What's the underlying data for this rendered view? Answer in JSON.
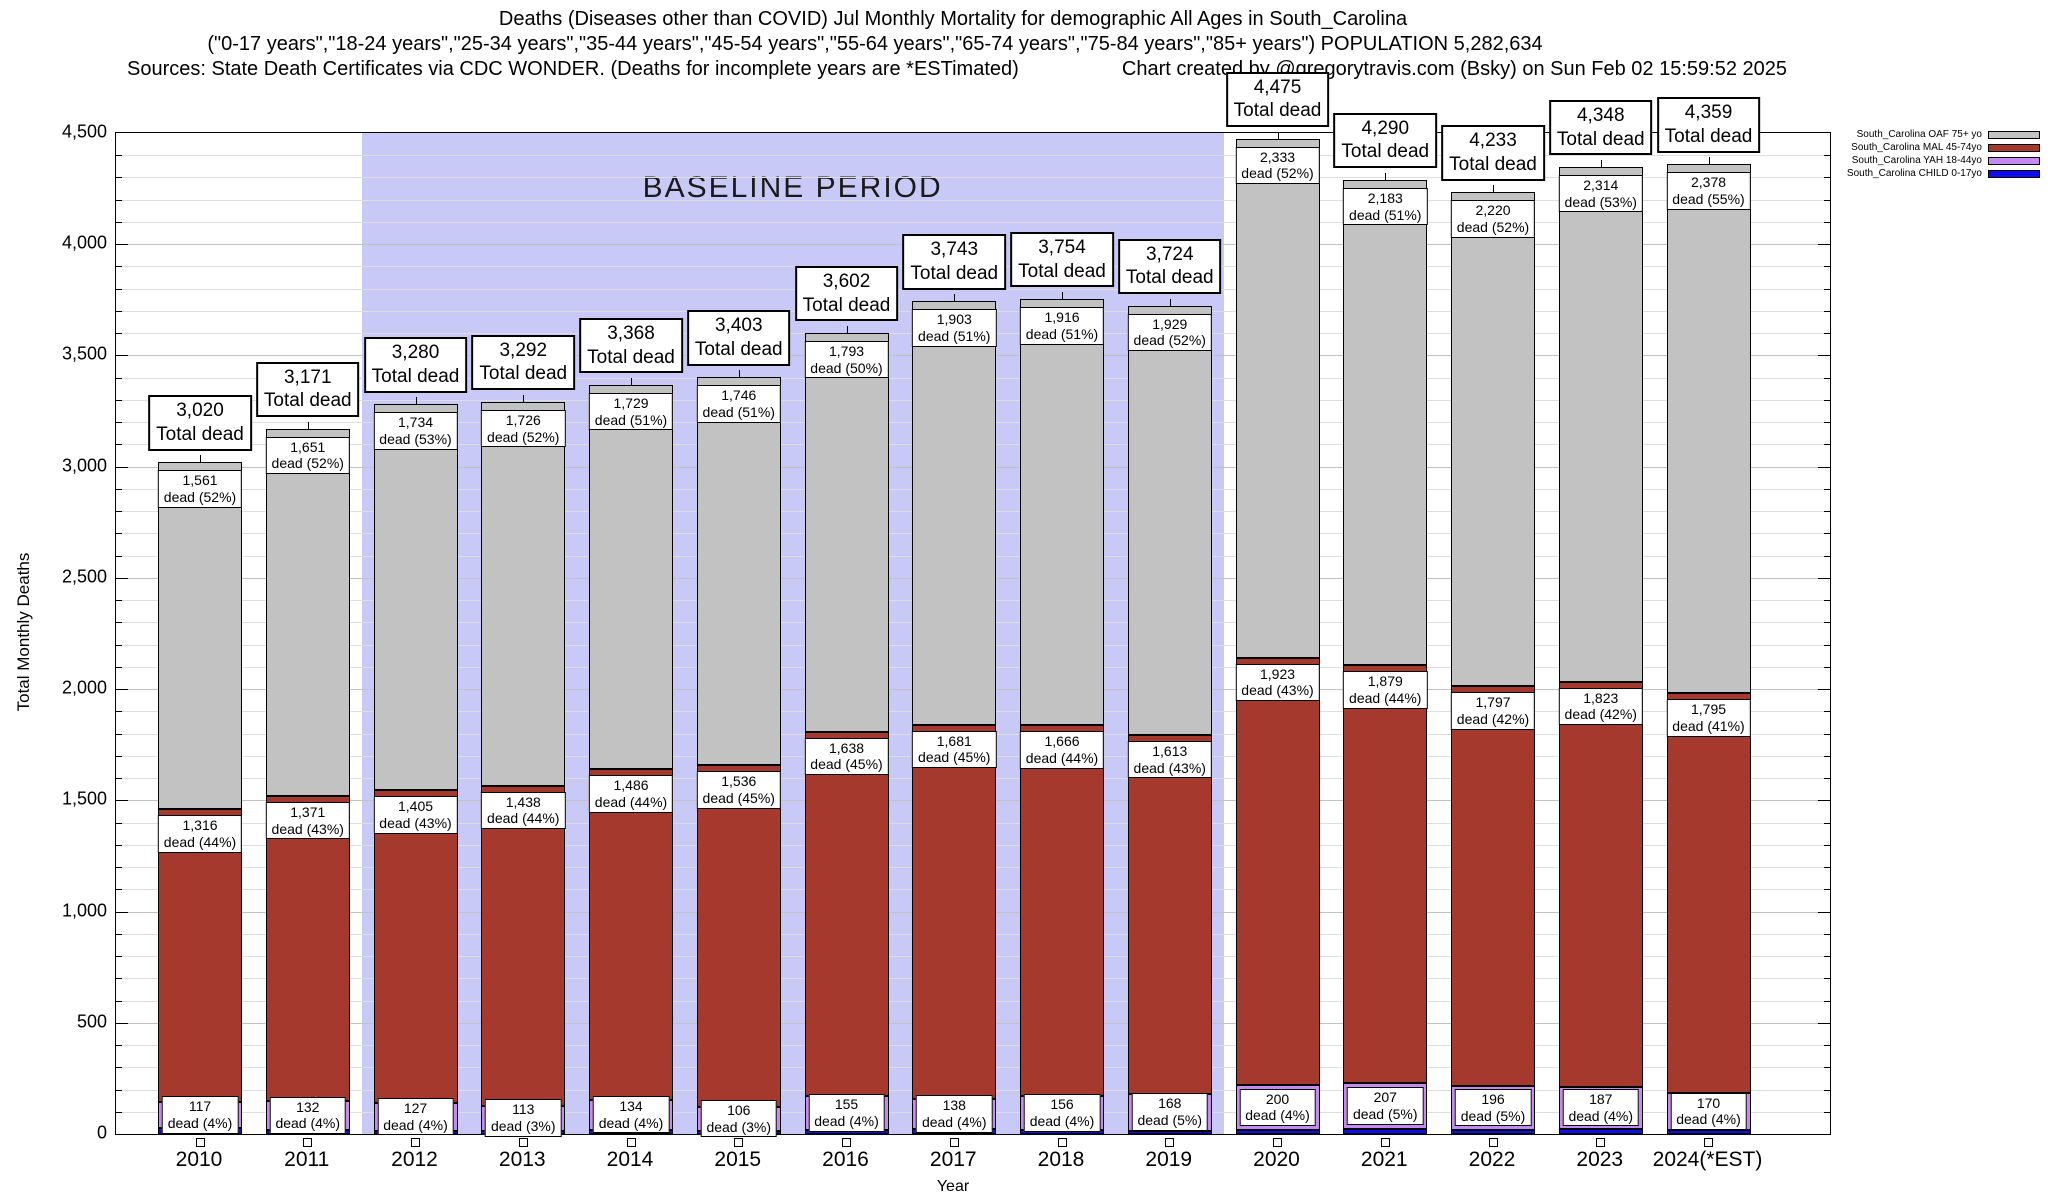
{
  "header": {
    "title": "Deaths (Diseases other than COVID) Jul Monthly Mortality for demographic All Ages in South_Carolina",
    "subtitle": "(\"0-17 years\",\"18-24 years\",\"25-34 years\",\"35-44 years\",\"45-54 years\",\"55-64 years\",\"65-74 years\",\"75-84 years\",\"85+ years\") POPULATION 5,282,634",
    "sources": "Sources: State Death Certificates via CDC WONDER. (Deaths for incomplete years are *ESTimated)",
    "credit": "Chart created by @gregorytravis.com (Bsky) on Sun Feb 02 15:59:52 2025"
  },
  "chart_data": {
    "type": "bar",
    "stacked": true,
    "title": "Deaths (Diseases other than COVID) Jul Monthly Mortality for demographic All Ages in South_Carolina",
    "xlabel": "Year",
    "ylabel": "Total Monthly Deaths",
    "ylim": [
      0,
      4500
    ],
    "ytick_step": 500,
    "yminor_step": 100,
    "ytick_labels": [
      "0",
      "500",
      "1,000",
      "1,500",
      "2,000",
      "2,500",
      "3,000",
      "3,500",
      "4,000",
      "4,500"
    ],
    "grid": true,
    "categories": [
      "2010",
      "2011",
      "2012",
      "2013",
      "2014",
      "2015",
      "2016",
      "2017",
      "2018",
      "2019",
      "2020",
      "2021",
      "2022",
      "2023",
      "2024(*EST)"
    ],
    "total_label_suffix": "Total dead",
    "baseline_period": {
      "label": "BASELINE PERIOD",
      "start_category": "2012",
      "end_category": "2019",
      "band_color": "#c9c9f8"
    },
    "legend": {
      "position": "top-right-outside",
      "entries": [
        {
          "label": "South_Carolina OAF 75+ yo",
          "color": "#c2c2c2"
        },
        {
          "label": "South_Carolina MAL 45-74yo",
          "color": "#a6392e"
        },
        {
          "label": "South_Carolina YAH 18-44yo",
          "color": "#c689f2"
        },
        {
          "label": "South_Carolina CHILD 0-17yo",
          "color": "#0d0dee"
        }
      ]
    },
    "bars": [
      {
        "year": "2010",
        "total": {
          "num": 3020,
          "text": "3,020"
        },
        "oaf": {
          "num": 1561,
          "text": "1,561",
          "pct": "dead (52%)"
        },
        "mal": {
          "num": 1316,
          "text": "1,316",
          "pct": "dead (44%)"
        },
        "yah": {
          "num": 117,
          "text": "117",
          "pct": "dead (4%)"
        }
      },
      {
        "year": "2011",
        "total": {
          "num": 3171,
          "text": "3,171"
        },
        "oaf": {
          "num": 1651,
          "text": "1,651",
          "pct": "dead (52%)"
        },
        "mal": {
          "num": 1371,
          "text": "1,371",
          "pct": "dead (43%)"
        },
        "yah": {
          "num": 132,
          "text": "132",
          "pct": "dead (4%)"
        }
      },
      {
        "year": "2012",
        "total": {
          "num": 3280,
          "text": "3,280"
        },
        "oaf": {
          "num": 1734,
          "text": "1,734",
          "pct": "dead (53%)"
        },
        "mal": {
          "num": 1405,
          "text": "1,405",
          "pct": "dead (43%)"
        },
        "yah": {
          "num": 127,
          "text": "127",
          "pct": "dead (4%)"
        }
      },
      {
        "year": "2013",
        "total": {
          "num": 3292,
          "text": "3,292"
        },
        "oaf": {
          "num": 1726,
          "text": "1,726",
          "pct": "dead (52%)"
        },
        "mal": {
          "num": 1438,
          "text": "1,438",
          "pct": "dead (44%)"
        },
        "yah": {
          "num": 113,
          "text": "113",
          "pct": "dead (3%)"
        }
      },
      {
        "year": "2014",
        "total": {
          "num": 3368,
          "text": "3,368"
        },
        "oaf": {
          "num": 1729,
          "text": "1,729",
          "pct": "dead (51%)"
        },
        "mal": {
          "num": 1486,
          "text": "1,486",
          "pct": "dead (44%)"
        },
        "yah": {
          "num": 134,
          "text": "134",
          "pct": "dead (4%)"
        }
      },
      {
        "year": "2015",
        "total": {
          "num": 3403,
          "text": "3,403"
        },
        "oaf": {
          "num": 1746,
          "text": "1,746",
          "pct": "dead (51%)"
        },
        "mal": {
          "num": 1536,
          "text": "1,536",
          "pct": "dead (45%)"
        },
        "yah": {
          "num": 106,
          "text": "106",
          "pct": "dead (3%)"
        }
      },
      {
        "year": "2016",
        "total": {
          "num": 3602,
          "text": "3,602"
        },
        "oaf": {
          "num": 1793,
          "text": "1,793",
          "pct": "dead (50%)"
        },
        "mal": {
          "num": 1638,
          "text": "1,638",
          "pct": "dead (45%)"
        },
        "yah": {
          "num": 155,
          "text": "155",
          "pct": "dead (4%)"
        }
      },
      {
        "year": "2017",
        "total": {
          "num": 3743,
          "text": "3,743"
        },
        "oaf": {
          "num": 1903,
          "text": "1,903",
          "pct": "dead (51%)"
        },
        "mal": {
          "num": 1681,
          "text": "1,681",
          "pct": "dead (45%)"
        },
        "yah": {
          "num": 138,
          "text": "138",
          "pct": "dead (4%)"
        }
      },
      {
        "year": "2018",
        "total": {
          "num": 3754,
          "text": "3,754"
        },
        "oaf": {
          "num": 1916,
          "text": "1,916",
          "pct": "dead (51%)"
        },
        "mal": {
          "num": 1666,
          "text": "1,666",
          "pct": "dead (44%)"
        },
        "yah": {
          "num": 156,
          "text": "156",
          "pct": "dead (4%)"
        }
      },
      {
        "year": "2019",
        "total": {
          "num": 3724,
          "text": "3,724"
        },
        "oaf": {
          "num": 1929,
          "text": "1,929",
          "pct": "dead (52%)"
        },
        "mal": {
          "num": 1613,
          "text": "1,613",
          "pct": "dead (43%)"
        },
        "yah": {
          "num": 168,
          "text": "168",
          "pct": "dead (5%)"
        }
      },
      {
        "year": "2020",
        "total": {
          "num": 4475,
          "text": "4,475"
        },
        "oaf": {
          "num": 2333,
          "text": "2,333",
          "pct": "dead (52%)"
        },
        "mal": {
          "num": 1923,
          "text": "1,923",
          "pct": "dead (43%)"
        },
        "yah": {
          "num": 200,
          "text": "200",
          "pct": "dead (4%)"
        }
      },
      {
        "year": "2021",
        "total": {
          "num": 4290,
          "text": "4,290"
        },
        "oaf": {
          "num": 2183,
          "text": "2,183",
          "pct": "dead (51%)"
        },
        "mal": {
          "num": 1879,
          "text": "1,879",
          "pct": "dead (44%)"
        },
        "yah": {
          "num": 207,
          "text": "207",
          "pct": "dead (5%)"
        }
      },
      {
        "year": "2022",
        "total": {
          "num": 4233,
          "text": "4,233"
        },
        "oaf": {
          "num": 2220,
          "text": "2,220",
          "pct": "dead (52%)"
        },
        "mal": {
          "num": 1797,
          "text": "1,797",
          "pct": "dead (42%)"
        },
        "yah": {
          "num": 196,
          "text": "196",
          "pct": "dead (5%)"
        }
      },
      {
        "year": "2023",
        "total": {
          "num": 4348,
          "text": "4,348"
        },
        "oaf": {
          "num": 2314,
          "text": "2,314",
          "pct": "dead (53%)"
        },
        "mal": {
          "num": 1823,
          "text": "1,823",
          "pct": "dead (42%)"
        },
        "yah": {
          "num": 187,
          "text": "187",
          "pct": "dead (4%)"
        }
      },
      {
        "year": "2024(*EST)",
        "total": {
          "num": 4359,
          "text": "4,359"
        },
        "oaf": {
          "num": 2378,
          "text": "2,378",
          "pct": "dead (55%)"
        },
        "mal": {
          "num": 1795,
          "text": "1,795",
          "pct": "dead (41%)"
        },
        "yah": {
          "num": 170,
          "text": "170",
          "pct": "dead (4%)"
        }
      }
    ]
  },
  "colors": {
    "grid_major": "#c2c2c2",
    "grid_minor": "#dedede",
    "bar_border": "#000000",
    "label_box_bg": "#ffffff"
  }
}
